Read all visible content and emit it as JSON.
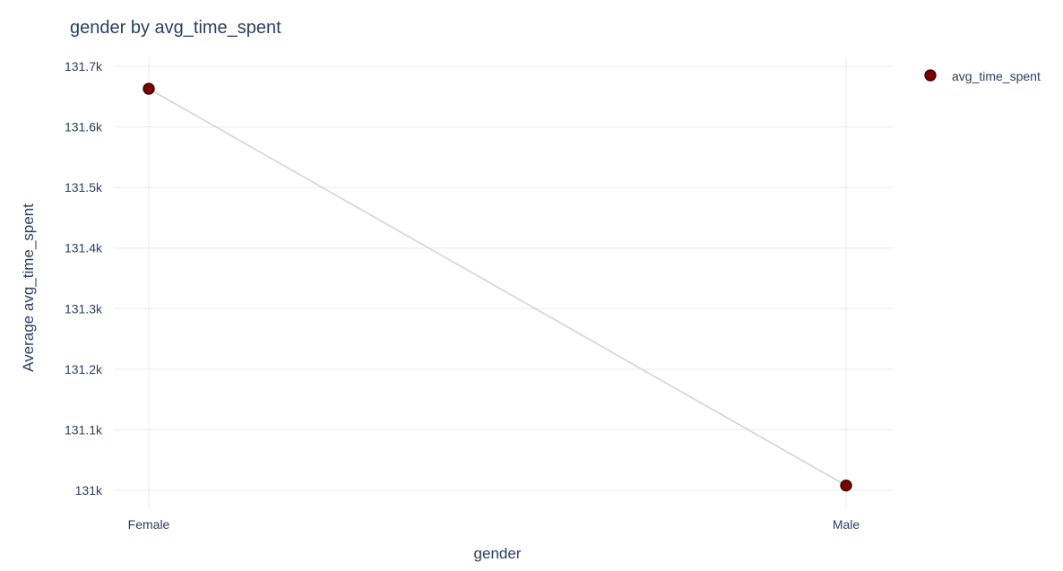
{
  "chart_data": {
    "type": "line",
    "title": "gender by avg_time_spent",
    "xlabel": "gender",
    "ylabel": "Average avg_time_spent",
    "categories": [
      "Female",
      "Male"
    ],
    "series": [
      {
        "name": "avg_time_spent",
        "values": [
          131663,
          131008
        ]
      }
    ],
    "ylim": [
      130960,
      131740
    ],
    "yticks": [
      131000,
      131100,
      131200,
      131300,
      131400,
      131500,
      131600,
      131700
    ],
    "ytick_labels": [
      "131k",
      "131.1k",
      "131.2k",
      "131.3k",
      "131.4k",
      "131.5k",
      "131.6k",
      "131.7k"
    ],
    "grid": true,
    "legend_position": "top-right",
    "colors": {
      "marker": "#7f0000",
      "marker_edge": "#2b0000",
      "line": "#d3d3d3"
    }
  }
}
